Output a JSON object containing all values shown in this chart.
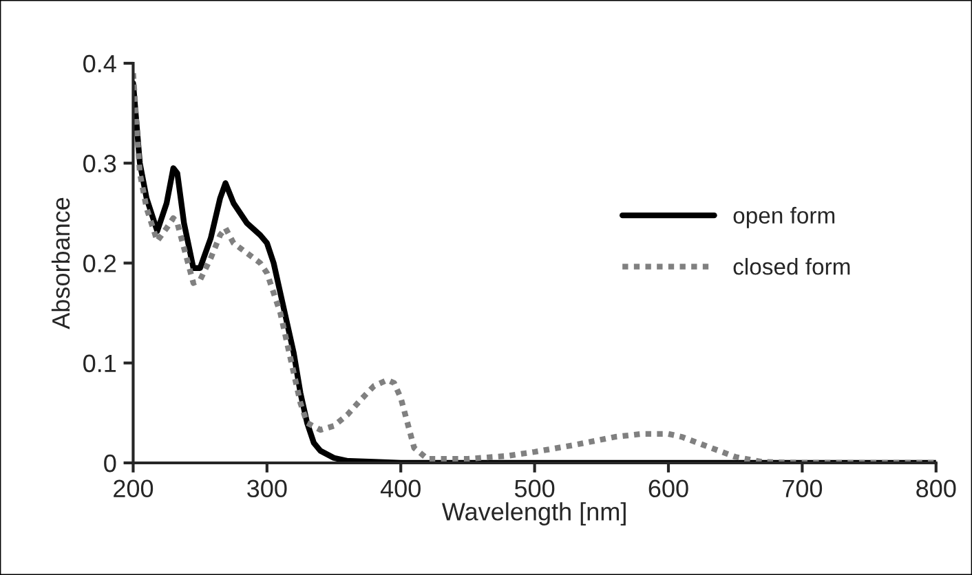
{
  "chart_data": {
    "type": "line",
    "xlabel": "Wavelength [nm]",
    "ylabel": "Absorbance",
    "xlim": [
      200,
      800
    ],
    "xticks": [
      200,
      300,
      400,
      500,
      600,
      700,
      800
    ],
    "ylim": [
      0,
      0.4
    ],
    "yticks": [
      {
        "value": 0,
        "label": "0"
      },
      0.1,
      0.2,
      0.3,
      0.4
    ],
    "grid": false,
    "legend": "right",
    "marker": "none",
    "series": [
      {
        "name": "open form",
        "color": "#000000",
        "line_style": "solid",
        "x": [
          200,
          205,
          210,
          218,
          225,
          230,
          233,
          238,
          245,
          250,
          258,
          265,
          269,
          275,
          285,
          295,
          300,
          305,
          310,
          315,
          320,
          325,
          330,
          335,
          340,
          350,
          360,
          380,
          400,
          500,
          600,
          700,
          800
        ],
        "values": [
          0.38,
          0.3,
          0.265,
          0.232,
          0.26,
          0.295,
          0.29,
          0.24,
          0.195,
          0.195,
          0.225,
          0.265,
          0.28,
          0.26,
          0.24,
          0.228,
          0.22,
          0.2,
          0.17,
          0.14,
          0.11,
          0.07,
          0.04,
          0.02,
          0.012,
          0.005,
          0.002,
          0.001,
          0,
          0,
          0,
          0,
          0
        ]
      },
      {
        "name": "closed form",
        "color": "#808080",
        "line_style": "dotted",
        "x": [
          200,
          205,
          210,
          218,
          225,
          230,
          233,
          238,
          245,
          250,
          258,
          265,
          269,
          275,
          285,
          295,
          300,
          305,
          310,
          315,
          320,
          325,
          330,
          340,
          350,
          360,
          370,
          380,
          390,
          395,
          400,
          405,
          410,
          420,
          450,
          480,
          500,
          530,
          560,
          580,
          600,
          610,
          630,
          650,
          670,
          700,
          800
        ],
        "values": [
          0.39,
          0.29,
          0.255,
          0.222,
          0.235,
          0.245,
          0.24,
          0.215,
          0.18,
          0.183,
          0.205,
          0.228,
          0.235,
          0.22,
          0.21,
          0.2,
          0.19,
          0.17,
          0.15,
          0.12,
          0.09,
          0.06,
          0.04,
          0.033,
          0.037,
          0.048,
          0.063,
          0.077,
          0.083,
          0.08,
          0.065,
          0.04,
          0.015,
          0.004,
          0.004,
          0.007,
          0.011,
          0.018,
          0.026,
          0.029,
          0.029,
          0.026,
          0.016,
          0.006,
          0.001,
          0,
          0
        ]
      }
    ]
  }
}
